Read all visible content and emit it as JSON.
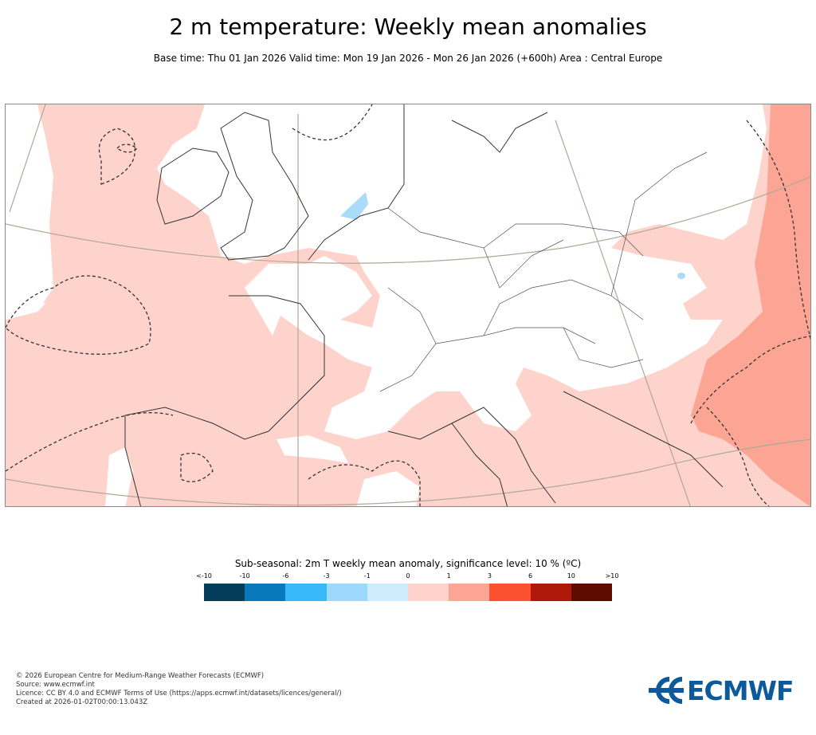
{
  "header": {
    "title": "2 m temperature: Weekly mean anomalies",
    "subtitle": "Base time: Thu 01 Jan 2026 Valid time: Mon 19 Jan 2026 - Mon 26 Jan 2026 (+600h) Area : Central Europe"
  },
  "map": {
    "region": "Central Europe",
    "colors": {
      "land": "#fed3cc",
      "land_dark": "#fca595",
      "white": "#ffffff",
      "cold": "#a8dcf8",
      "border": "#333333",
      "grid": "#b0a898"
    }
  },
  "legend": {
    "title": "Sub-seasonal: 2m T weekly mean anomaly, significance level: 10 % (ºC)",
    "ticks": [
      "<-10",
      "-10",
      "-6",
      "-3",
      "-1",
      "0",
      "1",
      "3",
      "6",
      "10",
      ">10"
    ],
    "colors": [
      "#033d5b",
      "#0879bb",
      "#36b9f6",
      "#9cd9fb",
      "#cdedfd",
      "#fed3cc",
      "#fca595",
      "#fc5130",
      "#b1180c",
      "#5e0c02"
    ]
  },
  "footer": {
    "lines": [
      "© 2026 European Centre for Medium-Range Weather Forecasts (ECMWF)",
      "Source: www.ecmwf.int",
      "Licence: CC BY 4.0 and ECMWF Terms of Use (https://apps.ecmwf.int/datasets/licences/general/)",
      "Created at 2026-01-02T00:00:13.043Z"
    ]
  },
  "logo": {
    "text": "ECMWF"
  }
}
